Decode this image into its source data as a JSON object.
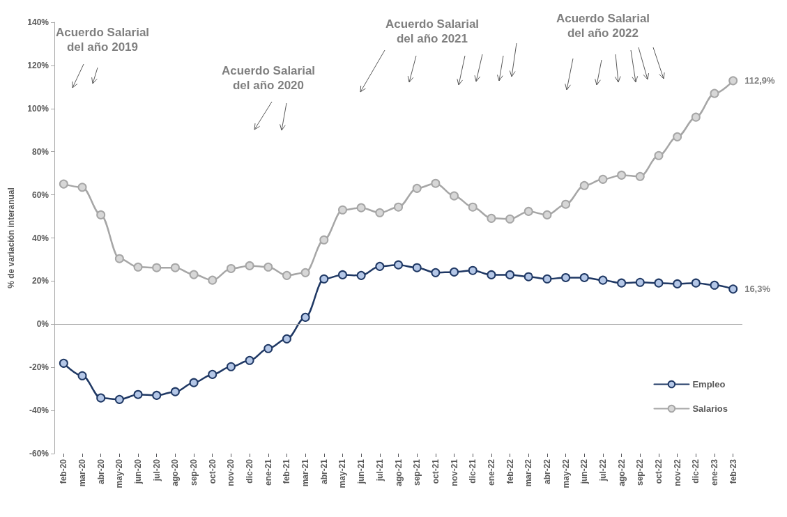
{
  "chart_data": {
    "type": "line",
    "ylabel": "% de variación interanual",
    "categories": [
      "feb-20",
      "mar-20",
      "abr-20",
      "may-20",
      "jun-20",
      "jul-20",
      "ago-20",
      "sep-20",
      "oct-20",
      "nov-20",
      "dic-20",
      "ene-21",
      "feb-21",
      "mar-21",
      "abr-21",
      "may-21",
      "jun-21",
      "jul-21",
      "ago-21",
      "sep-21",
      "oct-21",
      "nov-21",
      "dic-21",
      "ene-22",
      "feb-22",
      "mar-22",
      "abr-22",
      "may-22",
      "jun-22",
      "jul-22",
      "ago-22",
      "sep-22",
      "oct-22",
      "nov-22",
      "dic-22",
      "ene-23",
      "feb-23"
    ],
    "series": [
      {
        "name": "Empleo",
        "color": "#1f3864",
        "values": [
          -18.1,
          -23.9,
          -34.2,
          -34.9,
          -32.6,
          -33,
          -31.3,
          -27.1,
          -23.3,
          -19.7,
          -16.8,
          -11.3,
          -6.8,
          3.2,
          21,
          22.9,
          22.6,
          26.8,
          27.5,
          26.2,
          23.9,
          24.2,
          24.9,
          22.9,
          22.9,
          22,
          21,
          21.6,
          21.6,
          20.4,
          19.1,
          19.4,
          19.1,
          18.7,
          19.1,
          18.1,
          16.3
        ],
        "value_labels": [
          null,
          null,
          null,
          null,
          null,
          null,
          null,
          null,
          null,
          null,
          null,
          null,
          null,
          null,
          null,
          null,
          null,
          null,
          null,
          null,
          null,
          null,
          null,
          null,
          null,
          null,
          null,
          null,
          null,
          null,
          null,
          null,
          null,
          null,
          null,
          null,
          "16,3%"
        ]
      },
      {
        "name": "Salarios",
        "color": "#a6a6a6",
        "values": [
          65,
          63.5,
          50.7,
          30.4,
          26.5,
          26.2,
          26.2,
          23,
          20.4,
          25.8,
          27.1,
          26.5,
          22.6,
          23.9,
          39.1,
          53,
          54,
          51.7,
          54.3,
          63,
          65.3,
          59.5,
          54.3,
          49.1,
          48.8,
          52.3,
          50.7,
          55.6,
          64.3,
          67.2,
          69.1,
          68.5,
          78.2,
          86.9,
          96,
          107,
          112.9
        ],
        "value_labels": [
          null,
          null,
          null,
          null,
          null,
          null,
          null,
          null,
          null,
          null,
          null,
          null,
          null,
          null,
          null,
          null,
          null,
          null,
          null,
          null,
          null,
          null,
          null,
          null,
          null,
          null,
          null,
          null,
          null,
          null,
          null,
          null,
          null,
          null,
          null,
          null,
          "112,9%"
        ]
      }
    ],
    "ylim": [
      -60,
      140
    ],
    "yticks": [
      {
        "value": -60,
        "label": "-60%"
      },
      {
        "value": -40,
        "label": "-40%"
      },
      {
        "value": -20,
        "label": "-20%"
      },
      {
        "value": 0,
        "label": "0%"
      },
      {
        "value": 20,
        "label": "20%"
      },
      {
        "value": 40,
        "label": "40%"
      },
      {
        "value": 60,
        "label": "60%"
      },
      {
        "value": 80,
        "label": "80%"
      },
      {
        "value": 100,
        "label": "100%"
      },
      {
        "value": 120,
        "label": "120%"
      },
      {
        "value": 140,
        "label": "140%"
      }
    ],
    "ref_lines": [
      {
        "axis": "y",
        "value": 0,
        "color": "#a6a6a6"
      }
    ],
    "grid": false,
    "legend": "right",
    "marker": "circle",
    "line_style": "solid",
    "annotations": [
      "Acuerdo Salarial del año 2019",
      "Acuerdo Salarial del año 2020",
      "Acuerdo Salarial del año 2021",
      "Acuerdo Salarial del año 2022"
    ]
  }
}
